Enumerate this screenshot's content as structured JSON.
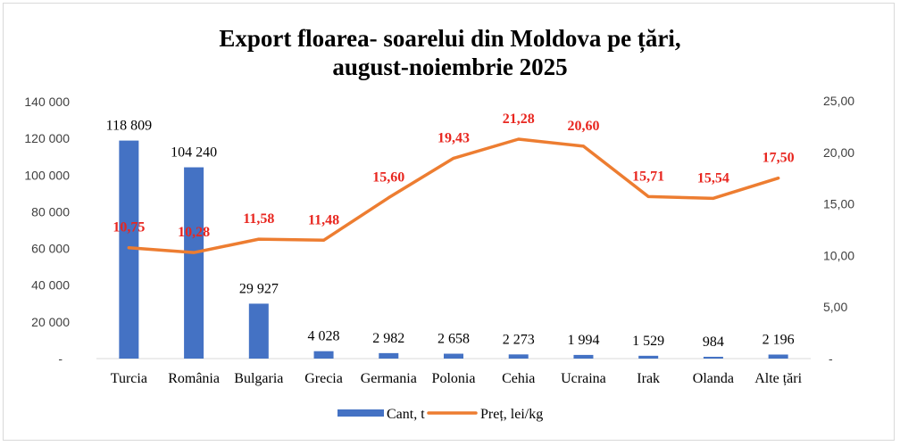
{
  "chart_data": {
    "type": "bar",
    "title_lines": [
      "Export floarea- soarelui din Moldova pe țări,",
      "august-noiembrie 2025"
    ],
    "categories": [
      "Turcia",
      "România",
      "Bulgaria",
      "Grecia",
      "Germania",
      "Polonia",
      "Cehia",
      "Ucraina",
      "Irak",
      "Olanda",
      "Alte țări"
    ],
    "series": [
      {
        "name": "Cant, t",
        "type": "bar",
        "axis": "left",
        "color": "#4472c4",
        "values": [
          118809,
          104240,
          29927,
          4028,
          2982,
          2658,
          2273,
          1994,
          1529,
          984,
          2196
        ],
        "labels": [
          "118 809",
          "104 240",
          "29 927",
          "4 028",
          "2 982",
          "2 658",
          "2 273",
          "1 994",
          "1 529",
          "984",
          "2 196"
        ]
      },
      {
        "name": "Preț, lei/kg",
        "type": "line",
        "axis": "right",
        "color": "#ed7d31",
        "label_color": "#e8261f",
        "values": [
          10.75,
          10.28,
          11.58,
          11.48,
          15.6,
          19.43,
          21.28,
          20.6,
          15.71,
          15.54,
          17.5
        ],
        "labels": [
          "10,75",
          "10,28",
          "11,58",
          "11,48",
          "15,60",
          "19,43",
          "21,28",
          "20,60",
          "15,71",
          "15,54",
          "17,50"
        ]
      }
    ],
    "y_left": {
      "lim": [
        0,
        140000
      ],
      "ticks": [
        0,
        20000,
        40000,
        60000,
        80000,
        100000,
        120000,
        140000
      ],
      "tick_labels": [
        "-",
        "20 000",
        "40 000",
        "60 000",
        "80 000",
        "100 000",
        "120 000",
        "140 000"
      ]
    },
    "y_right": {
      "lim": [
        0,
        25
      ],
      "ticks": [
        0,
        5,
        10,
        15,
        20,
        25
      ],
      "tick_labels": [
        "-",
        "5,00",
        "10,00",
        "15,00",
        "20,00",
        "25,00"
      ]
    },
    "grid": false,
    "legend_position": "bottom"
  }
}
